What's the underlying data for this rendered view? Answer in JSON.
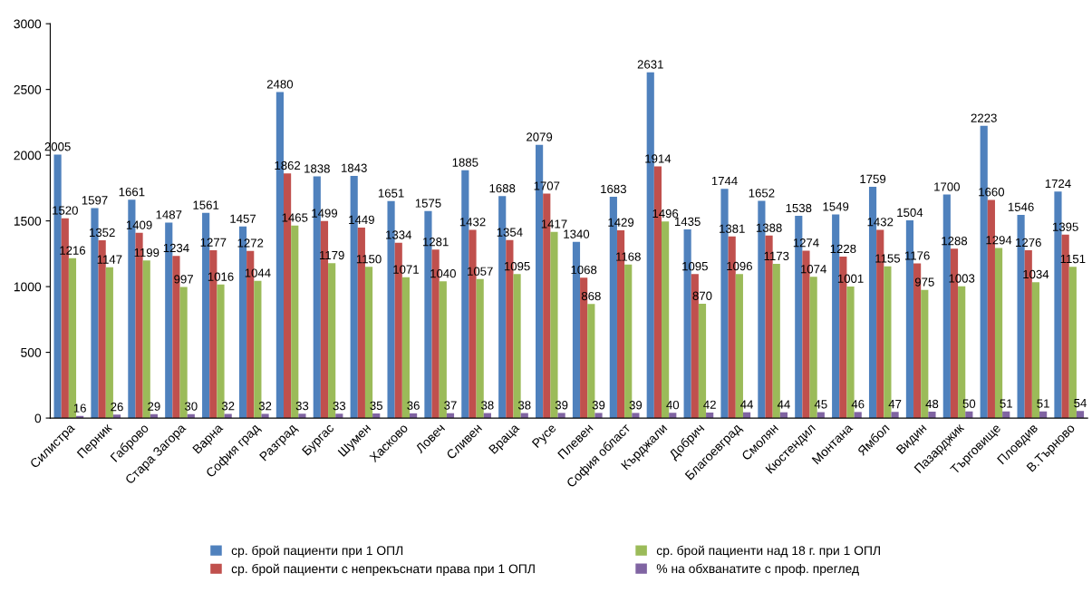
{
  "chart_data": {
    "type": "bar",
    "categories": [
      "Силистра",
      "Перник",
      "Габрово",
      "Стара Загора",
      "Варна",
      "София град",
      "Разград",
      "Бургас",
      "Шумен",
      "Хасково",
      "Ловеч",
      "Сливен",
      "Враца",
      "Русе",
      "Плевен",
      "София област",
      "Кърджали",
      "Добрич",
      "Благоевград",
      "Смолян",
      "Кюстендил",
      "Монтана",
      "Ямбол",
      "Видин",
      "Пазарджик",
      "Търговище",
      "Пловдив",
      "В.Търново"
    ],
    "series": [
      {
        "name": "ср. брой пациенти при 1 ОПЛ",
        "color": "#4f81bd",
        "values": [
          2005,
          1597,
          1661,
          1487,
          1561,
          1457,
          2480,
          1838,
          1843,
          1651,
          1575,
          1885,
          1688,
          2079,
          1340,
          1683,
          2631,
          1435,
          1744,
          1652,
          1538,
          1549,
          1759,
          1504,
          1700,
          2223,
          1546,
          1724
        ]
      },
      {
        "name": "ср. брой пациенти с непрекъснати права при 1 ОПЛ",
        "color": "#c0504d",
        "values": [
          1520,
          1352,
          1409,
          1234,
          1277,
          1272,
          1862,
          1499,
          1449,
          1334,
          1281,
          1432,
          1354,
          1707,
          1068,
          1429,
          1914,
          1095,
          1381,
          1388,
          1274,
          1228,
          1432,
          1176,
          1288,
          1660,
          1276,
          1395
        ]
      },
      {
        "name": "ср. брой пациенти над 18 г. при 1 ОПЛ",
        "color": "#9bbb59",
        "values": [
          1216,
          1147,
          1199,
          997,
          1016,
          1044,
          1465,
          1179,
          1150,
          1071,
          1040,
          1057,
          1095,
          1417,
          868,
          1168,
          1496,
          870,
          1096,
          1173,
          1074,
          1001,
          1155,
          975,
          1003,
          1294,
          1034,
          1151
        ]
      },
      {
        "name": "% на обхванатите с проф. преглед",
        "color": "#8064a2",
        "values": [
          16,
          26,
          29,
          30,
          32,
          32,
          33,
          33,
          35,
          36,
          37,
          38,
          38,
          39,
          39,
          39,
          40,
          42,
          44,
          44,
          45,
          46,
          47,
          48,
          50,
          51,
          51,
          54
        ]
      }
    ],
    "ylim": [
      0,
      3000
    ],
    "yticks": [
      0,
      500,
      1000,
      1500,
      2000,
      2500,
      3000
    ],
    "data_labels": true,
    "grid": false,
    "legend": "bottom"
  }
}
